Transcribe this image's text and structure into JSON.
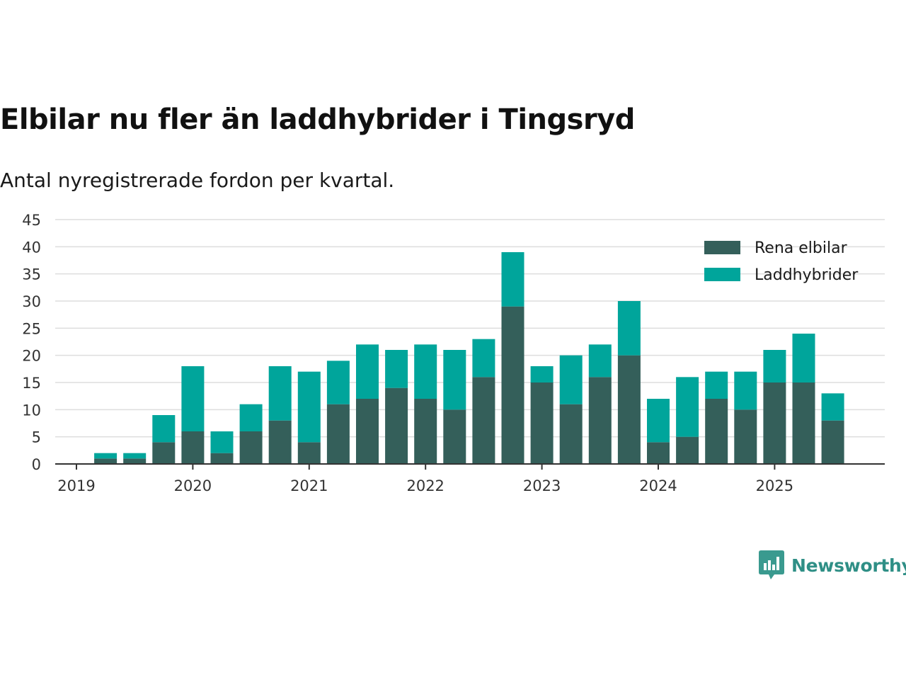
{
  "title": "Elbilar nu fler än laddhybrider i Tingsryd",
  "subtitle": "Antal nyregistrerade fordon per kvartal.",
  "brand": {
    "name": "Newsworthy",
    "icon": "newsworthy-logo-icon",
    "color": "#3a9a8f"
  },
  "colors": {
    "rena_elbilar": "#345f5a",
    "laddhybrider": "#00a59b",
    "grid": "#dddddd",
    "axis": "#333333"
  },
  "chart_data": {
    "type": "bar",
    "stacked": true,
    "title": "Elbilar nu fler än laddhybrider i Tingsryd",
    "subtitle": "Antal nyregistrerade fordon per kvartal.",
    "xlabel": "",
    "ylabel": "",
    "ylim": [
      0,
      45
    ],
    "yticks": [
      "0",
      "5",
      "10",
      "15",
      "20",
      "25",
      "30",
      "35",
      "40",
      "45"
    ],
    "xticks": [
      "2019",
      "2020",
      "2021",
      "2022",
      "2023",
      "2024",
      "2025"
    ],
    "grid": true,
    "legend_position": "top-right",
    "categories": [
      "2019 Q1",
      "2019 Q2",
      "2019 Q3",
      "2019 Q4",
      "2020 Q1",
      "2020 Q2",
      "2020 Q3",
      "2020 Q4",
      "2021 Q1",
      "2021 Q2",
      "2021 Q3",
      "2021 Q4",
      "2022 Q1",
      "2022 Q2",
      "2022 Q3",
      "2022 Q4",
      "2023 Q1",
      "2023 Q2",
      "2023 Q3",
      "2023 Q4",
      "2024 Q1",
      "2024 Q2",
      "2024 Q3",
      "2024 Q4",
      "2025 Q1",
      "2025 Q2",
      "2025 Q3"
    ],
    "series": [
      {
        "name": "Rena elbilar",
        "color": "#345f5a",
        "values": [
          0,
          1,
          1,
          4,
          6,
          2,
          6,
          8,
          4,
          11,
          12,
          14,
          12,
          10,
          16,
          29,
          15,
          11,
          16,
          20,
          4,
          5,
          12,
          10,
          15,
          15,
          8
        ]
      },
      {
        "name": "Laddhybrider",
        "color": "#00a59b",
        "values": [
          0,
          1,
          1,
          5,
          12,
          4,
          5,
          10,
          13,
          8,
          10,
          7,
          10,
          11,
          7,
          10,
          3,
          9,
          6,
          10,
          8,
          11,
          5,
          7,
          6,
          9,
          5
        ]
      }
    ]
  }
}
